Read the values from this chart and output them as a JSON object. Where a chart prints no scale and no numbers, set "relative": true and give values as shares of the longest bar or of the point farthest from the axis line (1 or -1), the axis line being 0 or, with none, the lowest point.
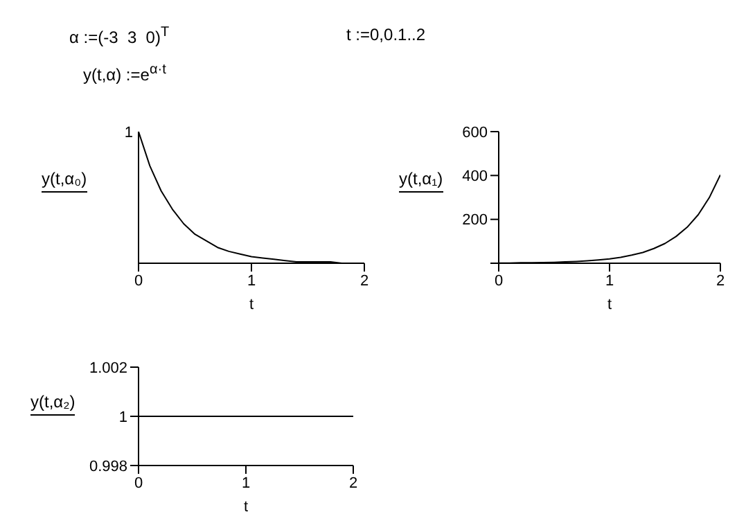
{
  "chart_data": [
    {
      "type": "line",
      "xlabel": "t",
      "ylabel": "y(t,α₀)",
      "relative": true,
      "annotations": [
        "α :=(-3  3  0)$^{T}$",
        "t :=0,0.1..2",
        "y(t,α) :=e$^{α·t}$",
        {
          "text": "1",
          "x": 0,
          "y": 1
        }
      ],
      "x": [
        0,
        0.1,
        0.2,
        0.3,
        0.4,
        0.5,
        0.6,
        0.7,
        0.8,
        0.9,
        1,
        1.1,
        1.2,
        1.3,
        1.4,
        1.5,
        1.6,
        1.7,
        1.8,
        1.9,
        2
      ],
      "series": [
        {
          "color": "#000000",
          "values": [
            1,
            0.74,
            0.55,
            0.41,
            0.3,
            0.22,
            0.17,
            0.12,
            0.09,
            0.07,
            0.05,
            0.04,
            0.03,
            0.02,
            0.01,
            0.01,
            0.01,
            0.01,
            0,
            0,
            0
          ]
        }
      ],
      "xlim": [
        0,
        2
      ],
      "xticks": [
        0,
        1,
        2
      ],
      "marker": "none"
    },
    {
      "type": "line",
      "xlabel": "t",
      "ylabel": "y(t,α₁)",
      "x": [
        0,
        0.1,
        0.2,
        0.3,
        0.4,
        0.5,
        0.6,
        0.7,
        0.8,
        0.9,
        1,
        1.1,
        1.2,
        1.3,
        1.4,
        1.5,
        1.6,
        1.7,
        1.8,
        1.9,
        2
      ],
      "series": [
        {
          "color": "#000000",
          "values": [
            1,
            1,
            2,
            2,
            3,
            4,
            6,
            8,
            11,
            15,
            20,
            27,
            37,
            49,
            67,
            90,
            122,
            164,
            221,
            299,
            403
          ]
        }
      ],
      "xlim": [
        0,
        2
      ],
      "xticks": [
        0,
        1,
        2
      ],
      "ylim": [
        0,
        600
      ],
      "yticks": [
        {
          "value": 0,
          "label": null
        },
        200,
        400,
        600
      ],
      "marker": "none"
    },
    {
      "type": "line",
      "xlabel": "t",
      "ylabel": "y(t,α₂)",
      "x": [
        0,
        0.1,
        0.2,
        0.3,
        0.4,
        0.5,
        0.6,
        0.7,
        0.8,
        0.9,
        1,
        1.1,
        1.2,
        1.3,
        1.4,
        1.5,
        1.6,
        1.7,
        1.8,
        1.9,
        2
      ],
      "series": [
        {
          "color": "#000000",
          "values": [
            1,
            1,
            1,
            1,
            1,
            1,
            1,
            1,
            1,
            1,
            1,
            1,
            1,
            1,
            1,
            1,
            1,
            1,
            1,
            1,
            1
          ]
        }
      ],
      "xlim": [
        0,
        2
      ],
      "xticks": [
        0,
        1,
        2
      ],
      "ylim": [
        0.998,
        1.002
      ],
      "yticks": [
        0.998,
        1,
        1.002
      ],
      "marker": "none"
    }
  ]
}
